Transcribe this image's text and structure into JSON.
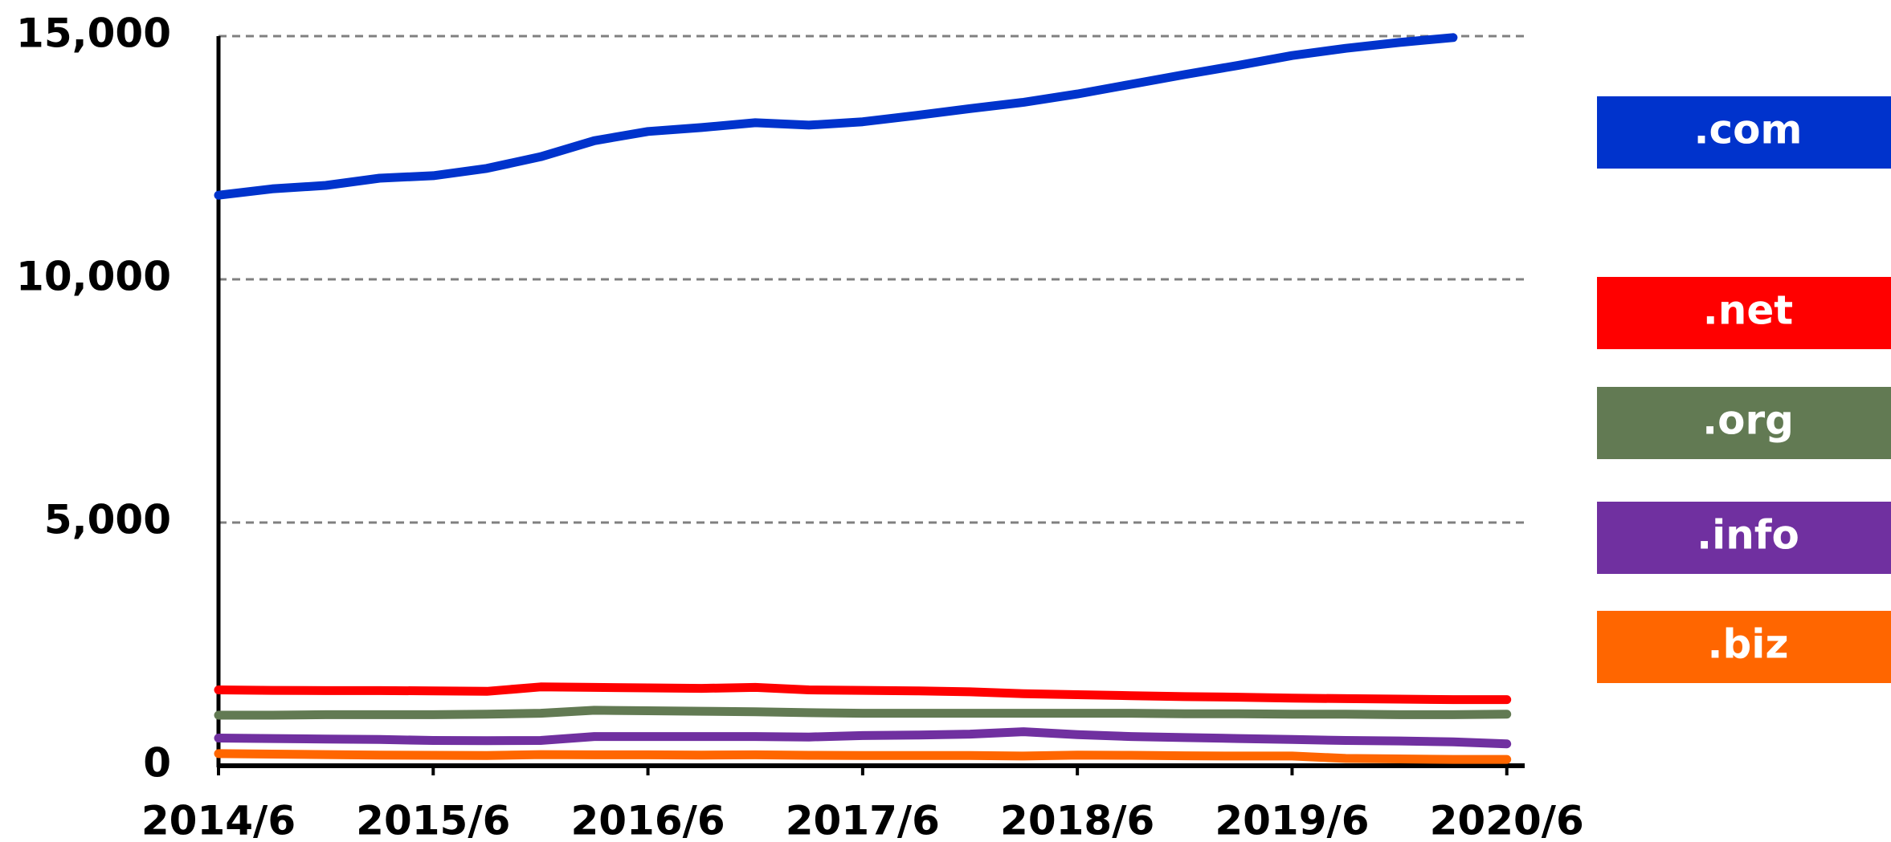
{
  "chart_data": {
    "type": "line",
    "x": [
      "2014-06",
      "2014-09",
      "2014-12",
      "2015-03",
      "2015-06",
      "2015-09",
      "2015-12",
      "2016-03",
      "2016-06",
      "2016-09",
      "2016-12",
      "2017-03",
      "2017-06",
      "2017-09",
      "2017-12",
      "2018-03",
      "2018-06",
      "2018-09",
      "2018-12",
      "2019-03",
      "2019-06",
      "2019-09",
      "2019-12",
      "2020-03",
      "2020-06"
    ],
    "series": [
      {
        "name": ".com",
        "color": "#0033cc",
        "values": [
          11730,
          11860,
          11930,
          12080,
          12130,
          12280,
          12520,
          12850,
          13040,
          13120,
          13220,
          13170,
          13240,
          13370,
          13510,
          13640,
          13810,
          14010,
          14210,
          14400,
          14600,
          14750,
          14870,
          14970,
          null
        ]
      },
      {
        "name": ".net",
        "color": "#ff0000",
        "values": [
          1560,
          1550,
          1545,
          1545,
          1540,
          1530,
          1620,
          1610,
          1600,
          1590,
          1610,
          1560,
          1550,
          1540,
          1520,
          1480,
          1460,
          1440,
          1420,
          1410,
          1390,
          1380,
          1370,
          1360,
          1360
        ]
      },
      {
        "name": ".org",
        "color": "#627a53",
        "values": [
          1040,
          1040,
          1050,
          1050,
          1050,
          1060,
          1080,
          1140,
          1130,
          1120,
          1110,
          1090,
          1080,
          1080,
          1080,
          1080,
          1080,
          1080,
          1070,
          1070,
          1060,
          1060,
          1050,
          1050,
          1060
        ]
      },
      {
        "name": ".info",
        "color": "#7030a0",
        "values": [
          570,
          560,
          550,
          540,
          520,
          515,
          520,
          600,
          600,
          600,
          600,
          590,
          620,
          630,
          650,
          700,
          640,
          600,
          580,
          560,
          540,
          520,
          510,
          490,
          450
        ]
      },
      {
        "name": ".biz",
        "color": "#ff6600",
        "values": [
          250,
          240,
          230,
          220,
          215,
          210,
          230,
          225,
          225,
          220,
          225,
          215,
          210,
          210,
          210,
          200,
          220,
          215,
          205,
          200,
          200,
          150,
          140,
          130,
          130
        ]
      }
    ],
    "xlim": [
      "2014-06",
      "2020-07"
    ],
    "xticks": [
      {
        "value": "2014-06",
        "label": "2014/6"
      },
      {
        "value": "2015-06",
        "label": "2015/6"
      },
      {
        "value": "2016-06",
        "label": "2016/6"
      },
      {
        "value": "2017-06",
        "label": "2017/6"
      },
      {
        "value": "2018-06",
        "label": "2018/6"
      },
      {
        "value": "2019-06",
        "label": "2019/6"
      },
      {
        "value": "2020-06",
        "label": "2020/6"
      }
    ],
    "ylim": [
      0,
      15000
    ],
    "yticks": [
      0,
      {
        "value": 5000,
        "label": "5,000"
      },
      {
        "value": 10000,
        "label": "10,000"
      },
      {
        "value": 15000,
        "label": "15,000"
      }
    ],
    "grid": true
  }
}
